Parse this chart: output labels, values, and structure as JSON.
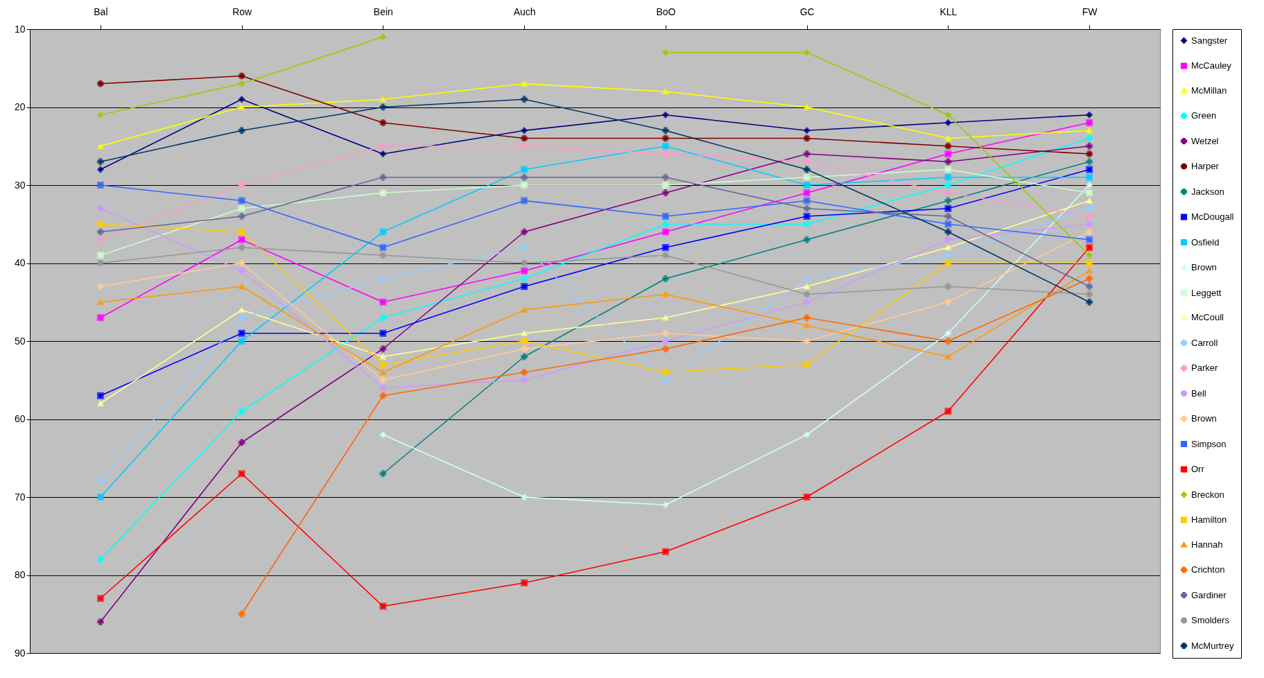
{
  "chart_data": {
    "type": "line",
    "categories": [
      "Bal",
      "Row",
      "Bein",
      "Auch",
      "BoO",
      "GC",
      "KLL",
      "FW"
    ],
    "ylim": [
      90,
      10
    ],
    "yticks": [
      10,
      20,
      30,
      40,
      50,
      60,
      70,
      80,
      90
    ],
    "grid": "y",
    "legend": "right",
    "series": [
      {
        "name": "Sangster",
        "color": "#000080",
        "marker": "diamond",
        "values": [
          28,
          19,
          26,
          23,
          21,
          23,
          22,
          21
        ]
      },
      {
        "name": "McCauley",
        "color": "#ff00ff",
        "marker": "square",
        "values": [
          47,
          37,
          45,
          41,
          36,
          31,
          26,
          22
        ]
      },
      {
        "name": "McMillan",
        "color": "#ffff00",
        "marker": "triangle",
        "values": [
          25,
          20,
          19,
          17,
          18,
          20,
          24,
          23
        ]
      },
      {
        "name": "Green",
        "color": "#00ffff",
        "marker": "cross",
        "values": [
          78,
          59,
          47,
          42,
          35,
          35,
          30,
          24
        ]
      },
      {
        "name": "Wetzel",
        "color": "#800080",
        "marker": "cross",
        "values": [
          86,
          63,
          51,
          36,
          31,
          26,
          27,
          25
        ]
      },
      {
        "name": "Harper",
        "color": "#800000",
        "marker": "circle",
        "values": [
          17,
          16,
          22,
          24,
          24,
          24,
          25,
          26
        ]
      },
      {
        "name": "Jackson",
        "color": "#008080",
        "marker": "cross",
        "values": [
          null,
          null,
          67,
          52,
          42,
          37,
          32,
          27
        ]
      },
      {
        "name": "McDougall",
        "color": "#0000ff",
        "marker": "square",
        "values": [
          57,
          49,
          49,
          43,
          38,
          34,
          33,
          28
        ]
      },
      {
        "name": "Osfield",
        "color": "#00ccff",
        "marker": "square",
        "values": [
          70,
          50,
          36,
          28,
          25,
          30,
          29,
          29
        ]
      },
      {
        "name": "Brown",
        "color": "#ccffff",
        "marker": "diamond",
        "values": [
          null,
          null,
          62,
          70,
          71,
          62,
          49,
          30
        ]
      },
      {
        "name": "Leggett",
        "color": "#ccffcc",
        "marker": "square",
        "values": [
          39,
          33,
          31,
          30,
          30,
          29,
          28,
          31
        ]
      },
      {
        "name": "McCoull",
        "color": "#ffff99",
        "marker": "triangle",
        "values": [
          58,
          46,
          52,
          49,
          47,
          43,
          38,
          32
        ]
      },
      {
        "name": "Carroll",
        "color": "#99ccff",
        "marker": "cross",
        "values": [
          68,
          47,
          42,
          38,
          55,
          42,
          39,
          33
        ]
      },
      {
        "name": "Parker",
        "color": "#ff99cc",
        "marker": "cross",
        "values": [
          37,
          30,
          25,
          25,
          26,
          27,
          31,
          34
        ]
      },
      {
        "name": "Bell",
        "color": "#cc99ff",
        "marker": "circle",
        "values": [
          33,
          41,
          56,
          55,
          50,
          45,
          37,
          35
        ]
      },
      {
        "name": "Brown",
        "color": "#ffcc99",
        "marker": "cross",
        "values": [
          43,
          40,
          55,
          51,
          49,
          50,
          45,
          36
        ]
      },
      {
        "name": "Simpson",
        "color": "#3366ff",
        "marker": "square",
        "values": [
          30,
          32,
          38,
          32,
          34,
          32,
          35,
          37
        ]
      },
      {
        "name": "Orr",
        "color": "#ff0000",
        "marker": "square",
        "values": [
          83,
          67,
          84,
          81,
          77,
          70,
          59,
          38
        ]
      },
      {
        "name": "Breckon",
        "color": "#99cc00",
        "marker": "diamond",
        "values": [
          21,
          17,
          11,
          null,
          13,
          13,
          21,
          39
        ]
      },
      {
        "name": "Hamilton",
        "color": "#ffcc00",
        "marker": "square",
        "values": [
          35,
          36,
          53,
          50,
          54,
          53,
          40,
          40
        ]
      },
      {
        "name": "Hannah",
        "color": "#ff9900",
        "marker": "triangle",
        "values": [
          45,
          43,
          54,
          46,
          44,
          48,
          52,
          41
        ]
      },
      {
        "name": "Crichton",
        "color": "#ff6600",
        "marker": "cross",
        "values": [
          null,
          85,
          57,
          54,
          51,
          47,
          50,
          42
        ]
      },
      {
        "name": "Gardiner",
        "color": "#666699",
        "marker": "cross",
        "values": [
          36,
          34,
          29,
          29,
          29,
          33,
          34,
          43
        ]
      },
      {
        "name": "Smolders",
        "color": "#969696",
        "marker": "circle",
        "values": [
          40,
          38,
          39,
          40,
          39,
          44,
          43,
          44
        ]
      },
      {
        "name": "McMurtrey",
        "color": "#003366",
        "marker": "cross",
        "values": [
          27,
          23,
          20,
          19,
          23,
          28,
          36,
          45
        ]
      }
    ]
  }
}
